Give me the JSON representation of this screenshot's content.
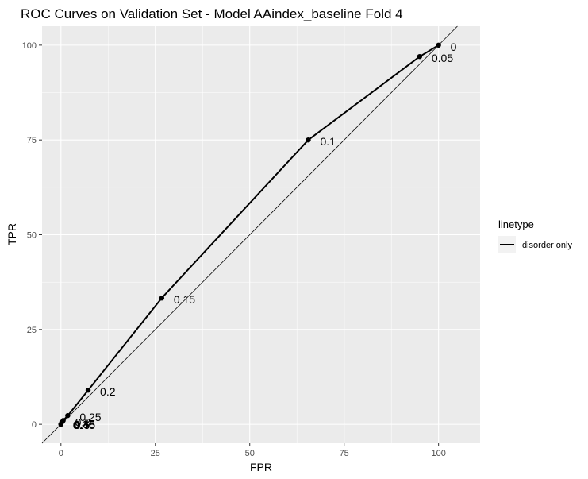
{
  "chart_data": {
    "type": "line",
    "title": "ROC Curves on Validation Set - Model AAindex_baseline Fold 4",
    "xlabel": "FPR",
    "ylabel": "TPR",
    "xlim": [
      -5,
      111
    ],
    "ylim": [
      -5,
      105
    ],
    "xticks": [
      0,
      25,
      50,
      75,
      100
    ],
    "yticks": [
      0,
      25,
      50,
      75,
      100
    ],
    "grid": true,
    "reference_line": "diagonal y = x",
    "legend": {
      "title": "linetype",
      "entries": [
        "disorder only"
      ],
      "placement": "right"
    },
    "series": [
      {
        "name": "disorder only",
        "points": [
          {
            "x": 100,
            "y": 100,
            "label": "0"
          },
          {
            "x": 95,
            "y": 97,
            "label": "0.05"
          },
          {
            "x": 65.5,
            "y": 75,
            "label": "0.1"
          },
          {
            "x": 26.7,
            "y": 33.3,
            "label": "0.15"
          },
          {
            "x": 7.2,
            "y": 9,
            "label": "0.2"
          },
          {
            "x": 1.8,
            "y": 2.3,
            "label": "0.25"
          },
          {
            "x": 0.6,
            "y": 1,
            "label": "0.3"
          },
          {
            "x": 0.2,
            "y": 0.5,
            "label": "0.35"
          },
          {
            "x": 0,
            "y": 0,
            "label": "0.4"
          },
          {
            "x": 0,
            "y": 0,
            "label": "0.45"
          },
          {
            "x": 0,
            "y": 0,
            "label": "0.5"
          }
        ]
      }
    ],
    "overlap_labels": [
      "0.4",
      "0.45",
      "0.5"
    ]
  },
  "colors": {
    "panel": "#ebebeb",
    "grid": "#ffffff",
    "line": "#000000",
    "overlap_label": "#8b0000"
  }
}
